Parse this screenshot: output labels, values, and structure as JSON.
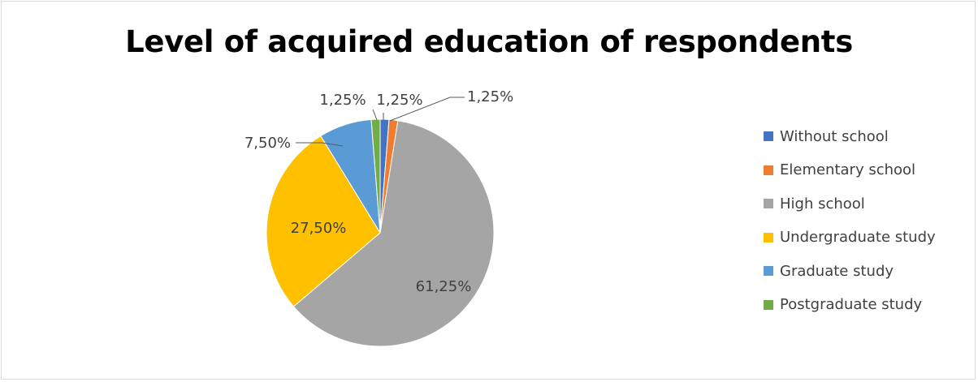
{
  "chart_data": {
    "type": "pie",
    "title": "Level of acquired education of respondents",
    "categories": [
      "Without school",
      "Elementary school",
      "High school",
      "Undergraduate study",
      "Graduate study",
      "Postgraduate study"
    ],
    "values": [
      1.25,
      1.25,
      61.25,
      27.5,
      7.5,
      1.25
    ],
    "data_labels": [
      "1,25%",
      "1,25%",
      "61,25%",
      "27,50%",
      "7,50%",
      "1,25%"
    ],
    "colors": [
      "#4472c4",
      "#ed7d31",
      "#a5a5a5",
      "#ffc000",
      "#5b9bd5",
      "#70ad47"
    ],
    "start_angle": "12 o'clock",
    "direction": "clockwise",
    "legend_position": "right"
  }
}
